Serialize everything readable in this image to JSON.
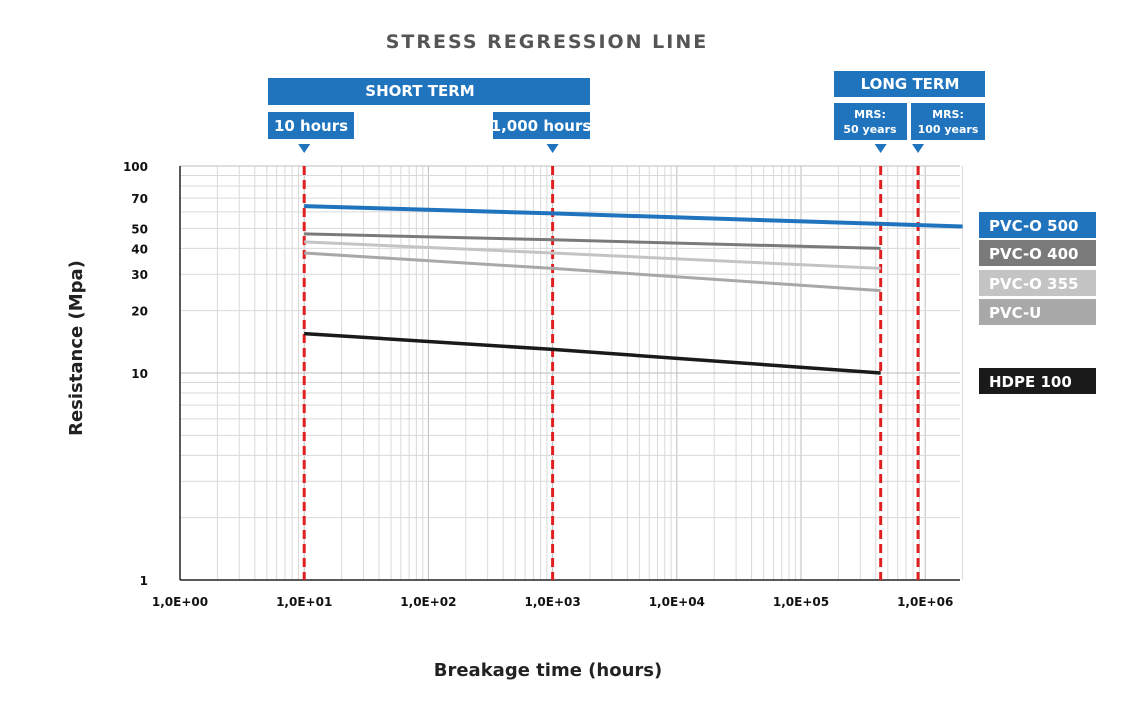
{
  "chart_data": {
    "type": "line",
    "title": "STRESS REGRESSION LINE",
    "xlabel": "Breakage time (hours)",
    "ylabel": "Resistance (Mpa)",
    "x_scale": "log",
    "y_scale": "log",
    "xlim": [
      1,
      2000000
    ],
    "ylim": [
      1,
      100
    ],
    "x_ticks": [
      1,
      10,
      100,
      1000,
      10000,
      100000,
      1000000
    ],
    "x_tick_labels": [
      "1,0E+00",
      "1,0E+01",
      "1,0E+02",
      "1,0E+03",
      "1,0E+04",
      "1,0E+05",
      "1,0E+06"
    ],
    "y_ticks": [
      1,
      10,
      20,
      30,
      40,
      50,
      70,
      100
    ],
    "y_tick_labels": [
      "1",
      "10",
      "20",
      "30",
      "40",
      "50",
      "70",
      "100"
    ],
    "grid": true,
    "legend_position": "right",
    "series": [
      {
        "name": "PVC-O 500",
        "color": "#1f74bd",
        "x": [
          10,
          1000,
          2000000
        ],
        "y": [
          64,
          59,
          51
        ]
      },
      {
        "name": "PVC-O 400",
        "color": "#7a7a7a",
        "x": [
          10,
          1000,
          438000
        ],
        "y": [
          47,
          44,
          40
        ]
      },
      {
        "name": "PVC-O 355",
        "color": "#c4c4c4",
        "x": [
          10,
          1000,
          438000
        ],
        "y": [
          43,
          38,
          32
        ]
      },
      {
        "name": "PVC-U",
        "color": "#a8a8a8",
        "x": [
          10,
          1000,
          438000
        ],
        "y": [
          38,
          32,
          25
        ]
      },
      {
        "name": "HDPE 100",
        "color": "#1a1a1a",
        "x": [
          10,
          1000,
          438000
        ],
        "y": [
          15.5,
          13,
          10
        ]
      }
    ],
    "reference_lines": [
      {
        "x": 10,
        "label": "10 hours",
        "color": "#e02020"
      },
      {
        "x": 1000,
        "label": "1,000 hours",
        "color": "#e02020"
      },
      {
        "x": 438000,
        "label_lines": [
          "MRS:",
          "50 years"
        ],
        "color": "#e02020"
      },
      {
        "x": 876000,
        "label_lines": [
          "MRS:",
          "100 years"
        ],
        "color": "#e02020"
      }
    ],
    "bands": [
      {
        "label": "SHORT TERM",
        "color": "#1f74bd"
      },
      {
        "label": "LONG TERM",
        "color": "#1f74bd"
      }
    ]
  }
}
